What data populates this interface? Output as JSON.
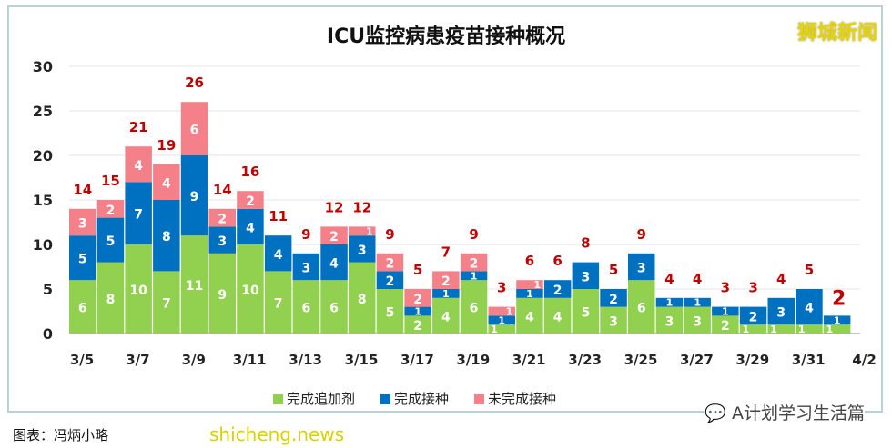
{
  "chart_data": {
    "type": "bar",
    "stacked": true,
    "title": "ICU监控病患疫苗接种概况",
    "categories": [
      "3/5",
      "3/6",
      "3/7",
      "3/8",
      "3/9",
      "3/10",
      "3/11",
      "3/12",
      "3/13",
      "3/14",
      "3/15",
      "3/16",
      "3/17",
      "3/18",
      "3/19",
      "3/20",
      "3/21",
      "3/22",
      "3/23",
      "3/24",
      "3/25",
      "3/26",
      "3/27",
      "3/28",
      "3/29",
      "3/30",
      "3/31",
      "4/1"
    ],
    "xtick_labels": [
      "3/5",
      "3/7",
      "3/9",
      "3/11",
      "3/13",
      "3/15",
      "3/17",
      "3/19",
      "3/21",
      "3/23",
      "3/25",
      "3/27",
      "3/29",
      "3/31",
      "4/2"
    ],
    "yticks": [
      0,
      5,
      10,
      15,
      20,
      25,
      30
    ],
    "ylim": [
      0,
      30
    ],
    "grid": true,
    "legend_placement": "bottom",
    "series": [
      {
        "name": "完成追加剂",
        "color": "#92d050",
        "values": [
          6,
          8,
          10,
          7,
          11,
          9,
          10,
          7,
          6,
          6,
          8,
          5,
          2,
          4,
          6,
          1,
          4,
          4,
          5,
          3,
          6,
          3,
          3,
          2,
          1,
          1,
          1,
          1
        ]
      },
      {
        "name": "完成接种",
        "color": "#0070c0",
        "values": [
          5,
          5,
          7,
          8,
          9,
          3,
          4,
          4,
          3,
          4,
          3,
          2,
          1,
          1,
          1,
          1,
          1,
          2,
          3,
          2,
          3,
          1,
          1,
          1,
          2,
          3,
          4,
          1
        ]
      },
      {
        "name": "未完成接种",
        "color": "#f4808a",
        "values": [
          3,
          2,
          4,
          4,
          6,
          2,
          2,
          0,
          0,
          2,
          1,
          2,
          2,
          2,
          2,
          1,
          1,
          0,
          0,
          0,
          0,
          0,
          0,
          0,
          0,
          0,
          0,
          0
        ]
      }
    ],
    "totals": [
      14,
      15,
      21,
      19,
      26,
      14,
      16,
      11,
      9,
      12,
      12,
      9,
      5,
      7,
      9,
      3,
      6,
      6,
      8,
      5,
      9,
      4,
      4,
      3,
      3,
      4,
      5,
      2
    ],
    "total_color": "#c00000"
  },
  "logo": "狮城新闻",
  "watermark": "A计划学习生活篇",
  "watermark2": "shicheng.news",
  "caption": "图表：冯炳小略"
}
